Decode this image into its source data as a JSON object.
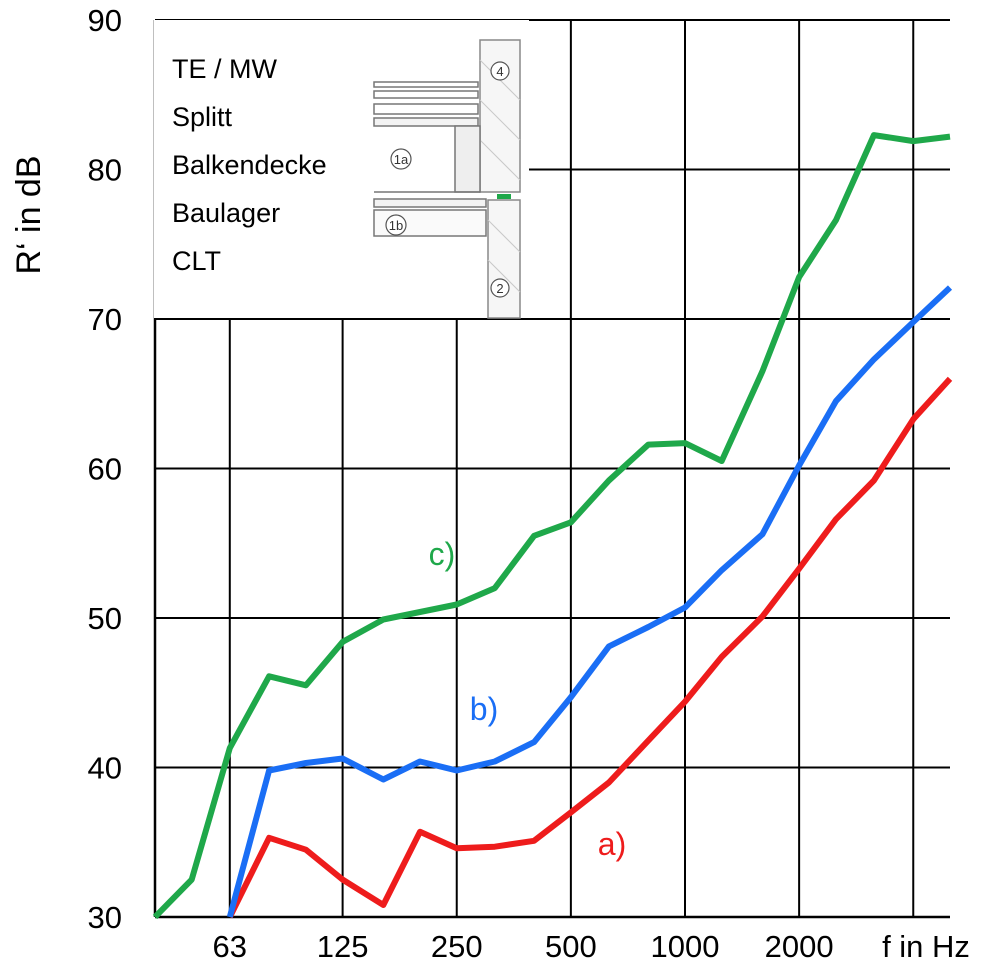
{
  "chart_data": {
    "type": "line",
    "ylabel": "R‘ in dB",
    "xlabel": "f in Hz",
    "ylim": [
      30,
      90
    ],
    "y_ticks": [
      30,
      40,
      50,
      60,
      70,
      80,
      90
    ],
    "x_scale": "log",
    "x_ticks_labeled": [
      63,
      125,
      250,
      500,
      1000,
      2000
    ],
    "x_tick_labels": [
      "63",
      "125",
      "250",
      "500",
      "1000",
      "2000"
    ],
    "x_gridlines": [
      63,
      125,
      250,
      500,
      1000,
      2000,
      4000
    ],
    "xlim": [
      40,
      5000
    ],
    "x": [
      40,
      50,
      63,
      80,
      100,
      125,
      160,
      200,
      250,
      315,
      400,
      500,
      630,
      800,
      1000,
      1250,
      1600,
      2000,
      2500,
      3150,
      4000,
      5000
    ],
    "grid": true,
    "series": [
      {
        "name": "a)",
        "color": "#ee1c1c",
        "values": [
          null,
          null,
          30,
          35.3,
          34.5,
          32.5,
          30.8,
          35.7,
          34.6,
          34.7,
          35.1,
          37,
          39,
          41.8,
          44.4,
          47.4,
          50.1,
          53.3,
          56.6,
          59.2,
          63.3,
          66
        ]
      },
      {
        "name": "b)",
        "color": "#1a6ef5",
        "values": [
          null,
          null,
          30,
          39.8,
          40.3,
          40.6,
          39.2,
          40.4,
          39.8,
          40.4,
          41.7,
          44.7,
          48.1,
          49.4,
          50.7,
          53.2,
          55.6,
          60.2,
          64.5,
          67.3,
          69.8,
          72.1
        ]
      },
      {
        "name": "c)",
        "color": "#1fa84a",
        "values": [
          30,
          32.5,
          41.3,
          46.1,
          45.5,
          48.4,
          49.9,
          50.4,
          50.9,
          52,
          55.5,
          56.4,
          59.2,
          61.6,
          61.7,
          60.5,
          66.5,
          72.8,
          76.6,
          82.3,
          81.9,
          82.2
        ]
      }
    ],
    "annotations": [
      "a)",
      "b)",
      "c)"
    ],
    "legend": {
      "location": "upper-left inset",
      "lines": [
        "TE / MW",
        "Splitt",
        "Balkendecke",
        "Baulager",
        "CLT"
      ]
    },
    "inset_labels": [
      "4",
      "1a",
      "1b",
      "2"
    ]
  }
}
